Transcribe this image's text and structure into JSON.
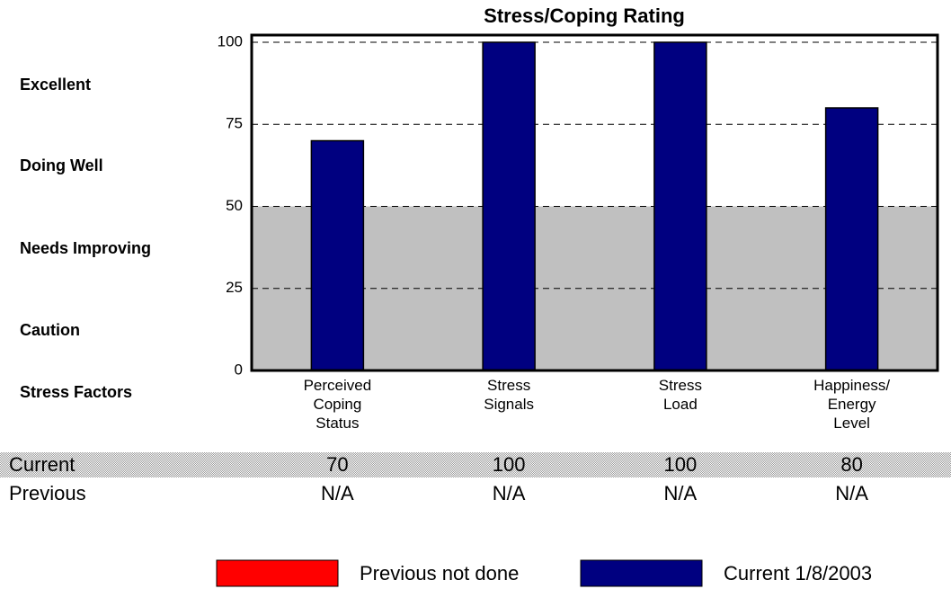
{
  "chart_data": {
    "type": "bar",
    "title": "Stress/Coping Rating",
    "categories": [
      "Perceived Coping Status",
      "Stress Signals",
      "Stress Load",
      "Happiness/ Energy Level"
    ],
    "series": [
      {
        "name": "Previous not done",
        "color": "#ff0000",
        "values": [
          null,
          null,
          null,
          null
        ]
      },
      {
        "name": "Current 1/8/2003",
        "color": "#000080",
        "values": [
          70,
          100,
          100,
          80
        ]
      }
    ],
    "ylim": [
      0,
      100
    ],
    "yticks": [
      0,
      25,
      50,
      75,
      100
    ],
    "grid": true,
    "shaded_range": [
      0,
      50
    ],
    "shaded_color": "#c0c0c0",
    "rating_labels": [
      "Excellent",
      "Doing Well",
      "Needs Improving",
      "Caution",
      "Stress Factors"
    ],
    "table": {
      "rows": [
        {
          "label": "Current"
        },
        {
          "label": "Previous",
          "values": [
            "N/A",
            "N/A",
            "N/A",
            "N/A"
          ]
        }
      ]
    }
  }
}
